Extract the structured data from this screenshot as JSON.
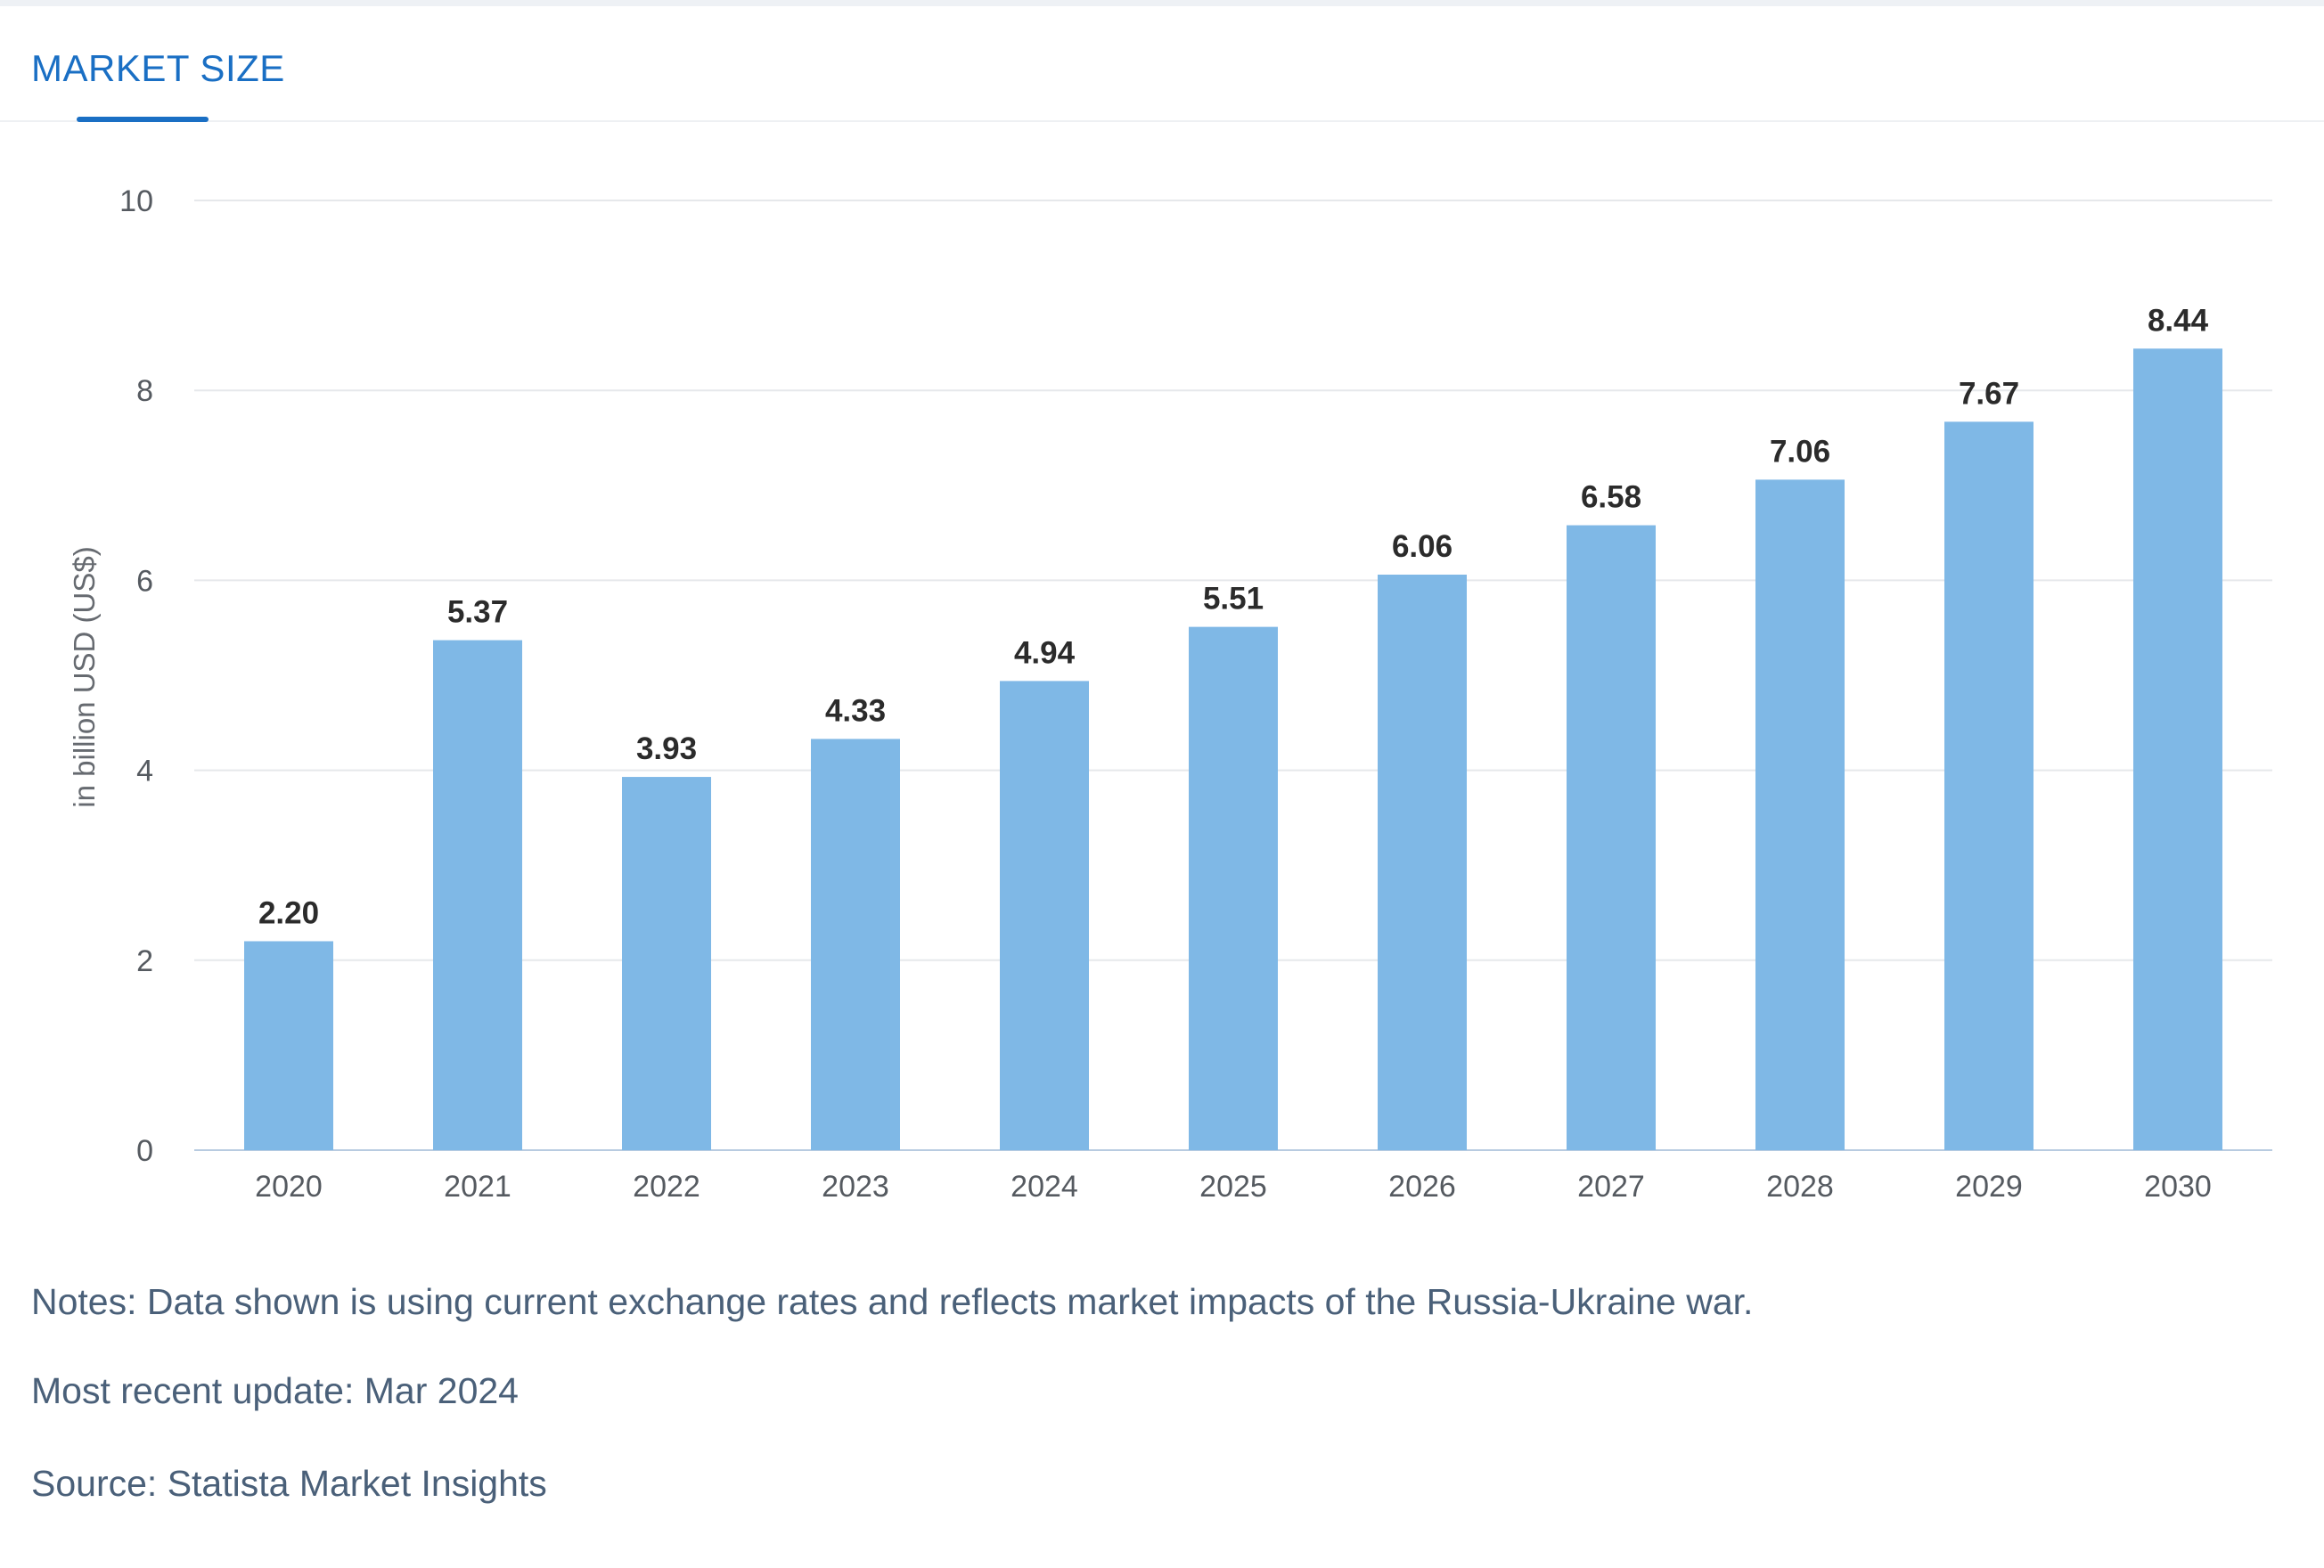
{
  "tab": {
    "label": "MARKET SIZE"
  },
  "chart_data": {
    "type": "bar",
    "title": "",
    "xlabel": "",
    "ylabel": "in billion USD (US$)",
    "ylim": [
      0,
      10
    ],
    "yticks": [
      0,
      2,
      4,
      6,
      8,
      10
    ],
    "grid": true,
    "categories": [
      "2020",
      "2021",
      "2022",
      "2023",
      "2024",
      "2025",
      "2026",
      "2027",
      "2028",
      "2029",
      "2030"
    ],
    "values": [
      2.2,
      5.37,
      3.93,
      4.33,
      4.94,
      5.51,
      6.06,
      6.58,
      7.06,
      7.67,
      8.44
    ],
    "value_labels": [
      "2.20",
      "5.37",
      "3.93",
      "4.33",
      "4.94",
      "5.51",
      "6.06",
      "6.58",
      "7.06",
      "7.67",
      "8.44"
    ],
    "colors": {
      "bar": "#7fb8e6",
      "grid": "#e6e8eb",
      "axis": "#b8cbe0",
      "label": "#2b2b2b",
      "tick": "#555a60"
    }
  },
  "footer": {
    "notes": "Notes: Data shown is using current exchange rates and reflects market impacts of the Russia-Ukraine war.",
    "update": "Most recent update: Mar 2024",
    "source": "Source: Statista Market Insights"
  }
}
